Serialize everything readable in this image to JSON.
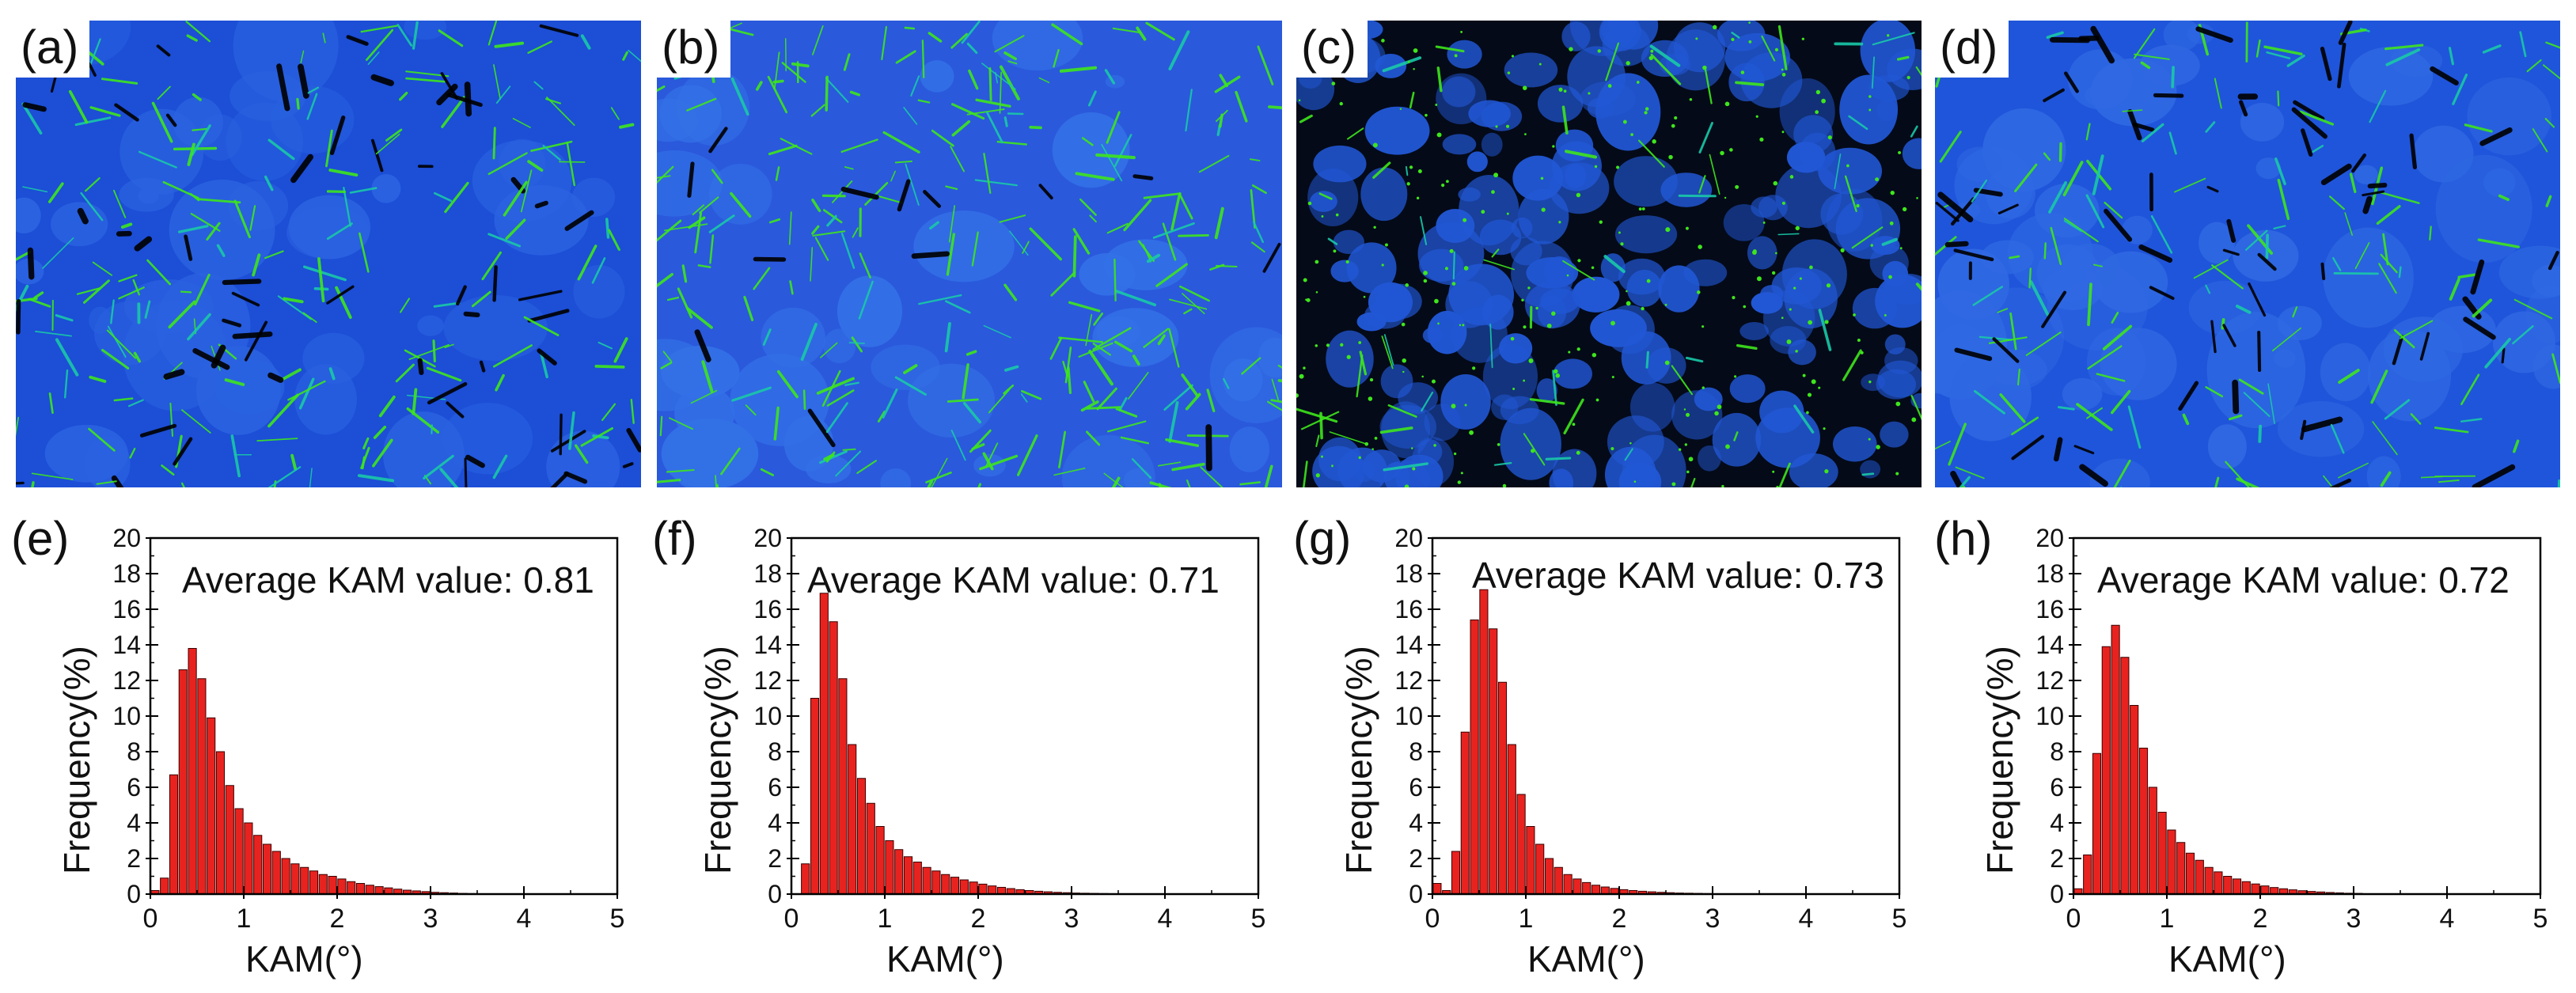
{
  "figure": {
    "map_panels": [
      {
        "label": "(a)",
        "tone": "green-rich"
      },
      {
        "label": "(b)",
        "tone": "blue-green"
      },
      {
        "label": "(c)",
        "tone": "dark-grains"
      },
      {
        "label": "(d)",
        "tone": "mixed"
      }
    ],
    "colors": {
      "map_blue": "#1f4fd8",
      "map_green": "#39e21a",
      "map_black": "#000000",
      "bar_fill": "#e8231f",
      "bar_edge": "#3a0000"
    }
  },
  "chart_data": [
    {
      "panel": "(e)",
      "type": "bar",
      "title": "Average KAM value: 0.81",
      "xlabel": "KAM(°)",
      "ylabel": "Frequency(%)",
      "xlim": [
        0,
        5
      ],
      "ylim": [
        0,
        20
      ],
      "xticks": [
        0,
        1,
        2,
        3,
        4,
        5
      ],
      "yticks": [
        0,
        2,
        4,
        6,
        8,
        10,
        12,
        14,
        16,
        18,
        20
      ],
      "bin_width": 0.1,
      "x": [
        0.05,
        0.15,
        0.25,
        0.35,
        0.45,
        0.55,
        0.65,
        0.75,
        0.85,
        0.95,
        1.05,
        1.15,
        1.25,
        1.35,
        1.45,
        1.55,
        1.65,
        1.75,
        1.85,
        1.95,
        2.05,
        2.15,
        2.25,
        2.35,
        2.45,
        2.55,
        2.65,
        2.75,
        2.85,
        2.95,
        3.05,
        3.15,
        3.25,
        3.35,
        3.45
      ],
      "values": [
        0.2,
        0.9,
        6.7,
        12.6,
        13.8,
        12.1,
        9.9,
        8.0,
        6.1,
        4.8,
        4.0,
        3.3,
        2.8,
        2.4,
        2.0,
        1.7,
        1.5,
        1.3,
        1.1,
        1.0,
        0.85,
        0.7,
        0.6,
        0.5,
        0.42,
        0.35,
        0.28,
        0.22,
        0.18,
        0.14,
        0.1,
        0.08,
        0.06,
        0.04,
        0.03
      ]
    },
    {
      "panel": "(f)",
      "type": "bar",
      "title": "Average KAM value: 0.71",
      "xlabel": "KAM(°)",
      "ylabel": "Frequency(%)",
      "xlim": [
        0,
        5
      ],
      "ylim": [
        0,
        20
      ],
      "xticks": [
        0,
        1,
        2,
        3,
        4,
        5
      ],
      "yticks": [
        0,
        2,
        4,
        6,
        8,
        10,
        12,
        14,
        16,
        18,
        20
      ],
      "bin_width": 0.1,
      "x": [
        0.15,
        0.25,
        0.35,
        0.45,
        0.55,
        0.65,
        0.75,
        0.85,
        0.95,
        1.05,
        1.15,
        1.25,
        1.35,
        1.45,
        1.55,
        1.65,
        1.75,
        1.85,
        1.95,
        2.05,
        2.15,
        2.25,
        2.35,
        2.45,
        2.55,
        2.65,
        2.75,
        2.85,
        2.95,
        3.05,
        3.15,
        3.25,
        3.35
      ],
      "values": [
        1.7,
        11.0,
        16.9,
        15.3,
        12.1,
        8.4,
        6.5,
        5.1,
        3.8,
        3.0,
        2.5,
        2.1,
        1.8,
        1.5,
        1.3,
        1.1,
        0.95,
        0.8,
        0.68,
        0.56,
        0.46,
        0.38,
        0.31,
        0.25,
        0.2,
        0.16,
        0.13,
        0.1,
        0.08,
        0.06,
        0.05,
        0.04,
        0.03
      ]
    },
    {
      "panel": "(g)",
      "type": "bar",
      "title": "Average KAM value: 0.73",
      "xlabel": "KAM(°)",
      "ylabel": "Frequency(%)",
      "xlim": [
        0,
        5
      ],
      "ylim": [
        0,
        20
      ],
      "xticks": [
        0,
        1,
        2,
        3,
        4,
        5
      ],
      "yticks": [
        0,
        2,
        4,
        6,
        8,
        10,
        12,
        14,
        16,
        18,
        20
      ],
      "bin_width": 0.1,
      "x": [
        0.05,
        0.15,
        0.25,
        0.35,
        0.45,
        0.55,
        0.65,
        0.75,
        0.85,
        0.95,
        1.05,
        1.15,
        1.25,
        1.35,
        1.45,
        1.55,
        1.65,
        1.75,
        1.85,
        1.95,
        2.05,
        2.15,
        2.25,
        2.35,
        2.45,
        2.55,
        2.65,
        2.75,
        2.85,
        2.95
      ],
      "values": [
        0.6,
        0.2,
        2.4,
        9.1,
        15.4,
        17.1,
        14.9,
        11.9,
        8.4,
        5.6,
        3.8,
        2.8,
        2.0,
        1.5,
        1.1,
        0.85,
        0.65,
        0.5,
        0.4,
        0.32,
        0.25,
        0.2,
        0.16,
        0.13,
        0.1,
        0.08,
        0.06,
        0.05,
        0.04,
        0.03
      ]
    },
    {
      "panel": "(h)",
      "type": "bar",
      "title": "Average KAM value: 0.72",
      "xlabel": "KAM(°)",
      "ylabel": "Frequency(%)",
      "xlim": [
        0,
        5
      ],
      "ylim": [
        0,
        20
      ],
      "xticks": [
        0,
        1,
        2,
        3,
        4,
        5
      ],
      "yticks": [
        0,
        2,
        4,
        6,
        8,
        10,
        12,
        14,
        16,
        18,
        20
      ],
      "bin_width": 0.1,
      "x": [
        0.05,
        0.15,
        0.25,
        0.35,
        0.45,
        0.55,
        0.65,
        0.75,
        0.85,
        0.95,
        1.05,
        1.15,
        1.25,
        1.35,
        1.45,
        1.55,
        1.65,
        1.75,
        1.85,
        1.95,
        2.05,
        2.15,
        2.25,
        2.35,
        2.45,
        2.55,
        2.65,
        2.75,
        2.85,
        2.95,
        3.05
      ],
      "values": [
        0.3,
        2.2,
        7.9,
        13.9,
        15.1,
        13.3,
        10.6,
        8.2,
        6.0,
        4.6,
        3.6,
        2.9,
        2.3,
        1.9,
        1.5,
        1.25,
        1.0,
        0.85,
        0.7,
        0.57,
        0.46,
        0.37,
        0.3,
        0.24,
        0.19,
        0.15,
        0.12,
        0.09,
        0.07,
        0.05,
        0.04
      ]
    }
  ]
}
